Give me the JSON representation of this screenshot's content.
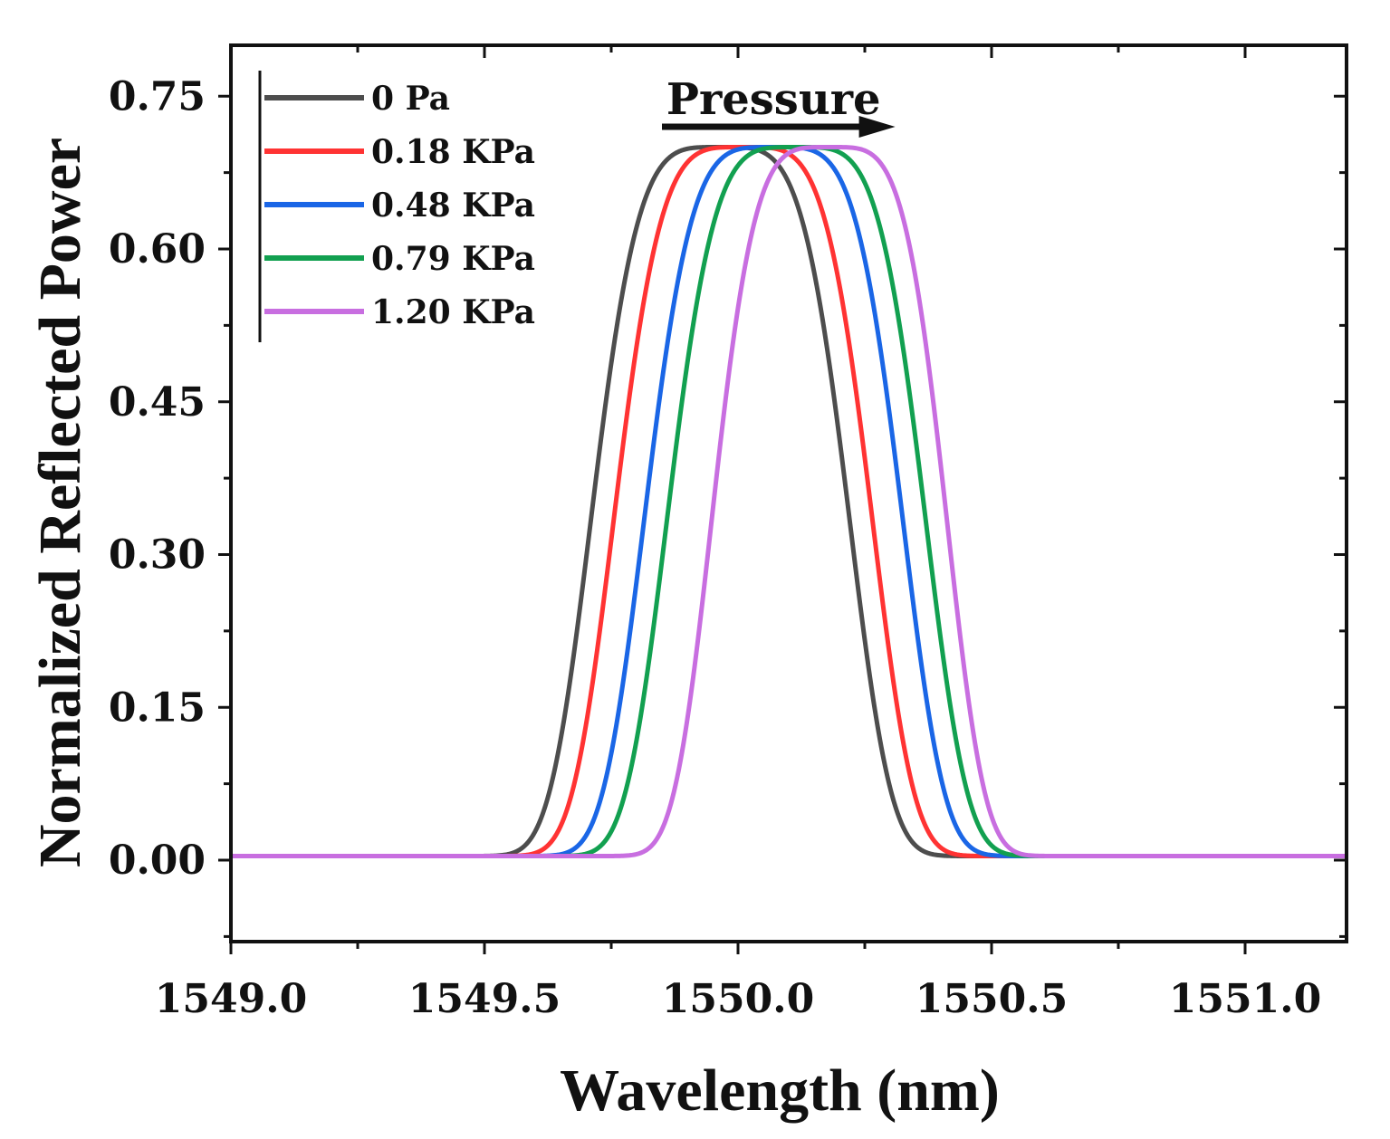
{
  "chart_data": {
    "type": "line",
    "title": "",
    "xlabel": "Wavelength (nm)",
    "ylabel": "Normalized Reflected Power",
    "xlim": [
      1549.0,
      1551.2
    ],
    "ylim": [
      -0.08,
      0.8
    ],
    "xticks": [
      {
        "value": 1549.0,
        "label": "1549.0"
      },
      {
        "value": 1549.5,
        "label": "1549.5"
      },
      {
        "value": 1550.0,
        "label": "1550.0"
      },
      {
        "value": 1550.5,
        "label": "1550.5"
      },
      {
        "value": 1551.0,
        "label": "1551.0"
      }
    ],
    "xminor": [
      1549.25,
      1549.75,
      1550.25,
      1550.75
    ],
    "yticks": [
      {
        "value": 0.0,
        "label": "0.00"
      },
      {
        "value": 0.15,
        "label": "0.15"
      },
      {
        "value": 0.3,
        "label": "0.30"
      },
      {
        "value": 0.45,
        "label": "0.45"
      },
      {
        "value": 0.6,
        "label": "0.60"
      },
      {
        "value": 0.75,
        "label": "0.75"
      }
    ],
    "yminor": [
      -0.075,
      0.075,
      0.225,
      0.375,
      0.525,
      0.675
    ],
    "grid": false,
    "legend_position": "top-left",
    "series": [
      {
        "name": "0 Pa",
        "color": "#4d4d4d",
        "center": 1549.965,
        "halfwidth": 0.33,
        "peak": 0.7,
        "x_start": 1549.0,
        "x_end": 1550.75
      },
      {
        "name": "0.18 KPa",
        "color": "#ff3333",
        "center": 1550.01,
        "halfwidth": 0.33,
        "peak": 0.7,
        "x_start": 1549.0,
        "x_end": 1550.8
      },
      {
        "name": "0.48 KPa",
        "color": "#1a66e6",
        "center": 1550.07,
        "halfwidth": 0.33,
        "peak": 0.7,
        "x_start": 1549.2,
        "x_end": 1550.95
      },
      {
        "name": "0.79 KPa",
        "color": "#12a050",
        "center": 1550.115,
        "halfwidth": 0.33,
        "peak": 0.7,
        "x_start": 1549.3,
        "x_end": 1551.0
      },
      {
        "name": "1.20 KPa",
        "color": "#c86ee0",
        "center": 1550.18,
        "halfwidth": 0.3,
        "peak": 0.7,
        "x_start": 1549.0,
        "x_end": 1551.2
      }
    ],
    "annotations": [
      {
        "text": "Pressure",
        "arrow_direction": "right",
        "arrow_from": 1549.85,
        "arrow_to": 1550.31,
        "arrow_y": 0.72,
        "text_x": 1550.07,
        "text_y": 0.745
      }
    ]
  }
}
